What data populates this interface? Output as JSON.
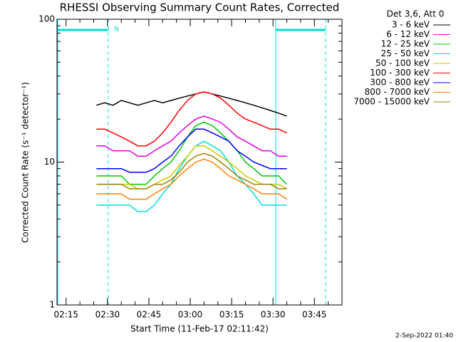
{
  "chart_data": {
    "type": "line",
    "title": "RHESSI Observing Summary Count Rates, Corrected",
    "xlabel": "Start Time (11-Feb-17 02:11:42)",
    "ylabel": "Corrected Count Rate (s⁻¹ detector⁻¹)",
    "legend_title": "Det 3,6, Att 0",
    "legend_position": "outside-right",
    "footer": "2-Sep-2022 01:40",
    "annotations": [
      "N"
    ],
    "log_y": true,
    "grid": false,
    "xlim": [
      11.7,
      115
    ],
    "xticks": [
      {
        "value": 15,
        "label": "02:15"
      },
      {
        "value": 30,
        "label": "02:30"
      },
      {
        "value": 45,
        "label": "02:45"
      },
      {
        "value": 60,
        "label": "03:00"
      },
      {
        "value": 75,
        "label": "03:15"
      },
      {
        "value": 90,
        "label": "03:30"
      },
      {
        "value": 105,
        "label": "03:45"
      }
    ],
    "xminorticks": [
      20,
      25,
      35,
      40,
      50,
      55,
      65,
      70,
      80,
      85,
      95,
      100,
      110
    ],
    "ylim": [
      1,
      100
    ],
    "yticks": [
      1,
      10,
      100
    ],
    "yminorticks": [
      2,
      3,
      4,
      5,
      6,
      7,
      8,
      9,
      20,
      30,
      40,
      50,
      60,
      70,
      80,
      90
    ],
    "x": [
      26,
      29,
      32,
      35,
      38,
      41,
      44,
      47,
      50,
      53,
      56,
      59,
      62,
      65,
      68,
      71,
      74,
      77,
      80,
      83,
      86,
      89,
      92,
      95
    ],
    "series": [
      {
        "name": "3 - 6 keV",
        "color": "#000000",
        "values": [
          25,
          26,
          25,
          27,
          26,
          25,
          26,
          27,
          26,
          27,
          28,
          29,
          30,
          31,
          30,
          29,
          28,
          27,
          26,
          25,
          24,
          23,
          22,
          21
        ]
      },
      {
        "name": "6 - 12 keV",
        "color": "#e000e0",
        "values": [
          13,
          13,
          12,
          12,
          12,
          11,
          11,
          12,
          13,
          14,
          16,
          18,
          20,
          21,
          20,
          19,
          17,
          15,
          14,
          13,
          12,
          12,
          11,
          11
        ]
      },
      {
        "name": "12 - 25 keV",
        "color": "#00c800",
        "values": [
          8,
          8,
          8,
          8,
          7,
          7,
          7,
          8,
          9,
          10,
          12,
          15,
          18,
          19,
          18,
          16,
          14,
          12,
          10,
          9,
          8,
          8,
          8,
          7
        ]
      },
      {
        "name": "25 - 50 keV",
        "color": "#00dcdc",
        "values": [
          5,
          5,
          5,
          5,
          5,
          4.5,
          4.5,
          5,
          6,
          7,
          9,
          11,
          13,
          14,
          13,
          12,
          10,
          8,
          7,
          6,
          5,
          5,
          5,
          5
        ]
      },
      {
        "name": "50 - 100 keV",
        "color": "#c8c800",
        "values": [
          7,
          7,
          7,
          7,
          7,
          6.5,
          6.5,
          7,
          7.5,
          8,
          9.5,
          11,
          13,
          13,
          12,
          11,
          10,
          9,
          8,
          7.5,
          7,
          7,
          7,
          6.5
        ]
      },
      {
        "name": "100 - 300 keV",
        "color": "#ff0000",
        "values": [
          17,
          17,
          16,
          15,
          14,
          13,
          13,
          14,
          16,
          19,
          23,
          27,
          30,
          31,
          30,
          28,
          25,
          22,
          20,
          19,
          18,
          17,
          17,
          16
        ]
      },
      {
        "name": "300 - 800 keV",
        "color": "#0000ff",
        "values": [
          9,
          9,
          9,
          9,
          8.5,
          8.5,
          8.5,
          9,
          10,
          11,
          13,
          15,
          17,
          17,
          16,
          15,
          14,
          12,
          11,
          10,
          9.5,
          9,
          9,
          9
        ]
      },
      {
        "name": "800 - 7000 keV",
        "color": "#ff8000",
        "values": [
          6,
          6,
          6,
          6,
          5.5,
          5.5,
          5.5,
          6,
          6.5,
          7,
          8,
          9,
          10,
          10.5,
          10,
          9,
          8,
          7.5,
          7,
          6.5,
          6,
          6,
          6,
          5.5
        ]
      },
      {
        "name": "7000 - 15000 keV",
        "color": "#a08000",
        "values": [
          7,
          7,
          7,
          7,
          6.5,
          6.5,
          6.5,
          7,
          7,
          7.5,
          8.5,
          10,
          11,
          11.5,
          11,
          10,
          9,
          8,
          7.5,
          7,
          7,
          7,
          6.5,
          6.5
        ]
      }
    ]
  }
}
